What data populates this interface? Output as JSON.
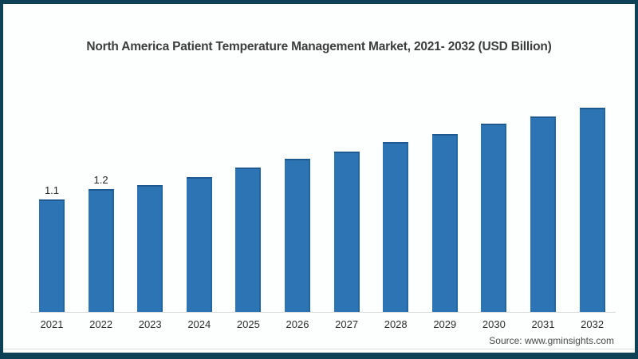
{
  "title": "North America Patient Temperature Management Market, 2021- 2032 (USD Billion)",
  "source": "Source: www.gminsights.com",
  "colors": {
    "frame_border": "#0d4156",
    "bar_fill": "#2d74b5",
    "bar_edge": "#1e5a8f",
    "axis_line": "#d9d9d9"
  },
  "chart_data": {
    "type": "bar",
    "title": "North America Patient Temperature Management Market, 2021- 2032 (USD Billion)",
    "categories": [
      "2021",
      "2022",
      "2023",
      "2024",
      "2025",
      "2026",
      "2027",
      "2028",
      "2029",
      "2030",
      "2031",
      "2032"
    ],
    "values": [
      1.1,
      1.2,
      1.24,
      1.32,
      1.41,
      1.5,
      1.57,
      1.66,
      1.74,
      1.84,
      1.91,
      2.0
    ],
    "data_labels": [
      "1.1",
      "1.2",
      "",
      "",
      "",
      "",
      "",
      "",
      "",
      "",
      "",
      ""
    ],
    "xlabel": "",
    "ylabel": "",
    "ylim": [
      0,
      2.2
    ],
    "grid": false,
    "legend": false,
    "bar_color": "#2d74b5",
    "source": "Source: www.gminsights.com"
  }
}
